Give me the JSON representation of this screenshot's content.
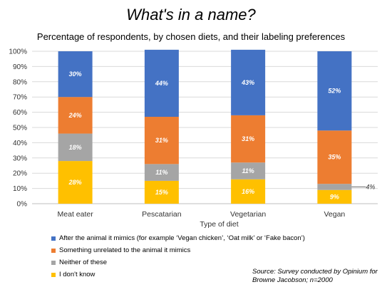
{
  "title": "What's in a name?",
  "subtitle": "Percentage of respondents, by chosen diets, and their labeling preferences",
  "source": "Source: Survey conducted by Opinium for Browne Jacobson; n=2000",
  "chart_data": {
    "type": "bar",
    "stacked": true,
    "xlabel": "Type of diet",
    "ylabel": "",
    "ylim": [
      0,
      100
    ],
    "yticks": [
      "0%",
      "10%",
      "20%",
      "30%",
      "40%",
      "50%",
      "60%",
      "70%",
      "80%",
      "90%",
      "100%"
    ],
    "grid": true,
    "legend_position": "bottom-left",
    "categories": [
      "Meat eater",
      "Pescatarian",
      "Vegetarian",
      "Vegan"
    ],
    "series": [
      {
        "name": "I don't know",
        "color": "#ffc000",
        "values": [
          28,
          15,
          16,
          9
        ],
        "labels": [
          "28%",
          "15%",
          "16%",
          "9%"
        ]
      },
      {
        "name": "Neither of these",
        "color": "#a5a5a5",
        "values": [
          18,
          11,
          11,
          4
        ],
        "labels": [
          "18%",
          "11%",
          "11%",
          "4%"
        ]
      },
      {
        "name": "Something unrelated to the animal it mimics",
        "color": "#ed7d31",
        "values": [
          24,
          31,
          31,
          35
        ],
        "labels": [
          "24%",
          "31%",
          "31%",
          "35%"
        ]
      },
      {
        "name": "After the animal it mimics (for example ‘Vegan chicken’, ‘Oat milk’ or ‘Fake bacon’)",
        "color": "#4472c4",
        "values": [
          30,
          44,
          43,
          52
        ],
        "labels": [
          "30%",
          "44%",
          "43%",
          "52%"
        ]
      }
    ]
  }
}
